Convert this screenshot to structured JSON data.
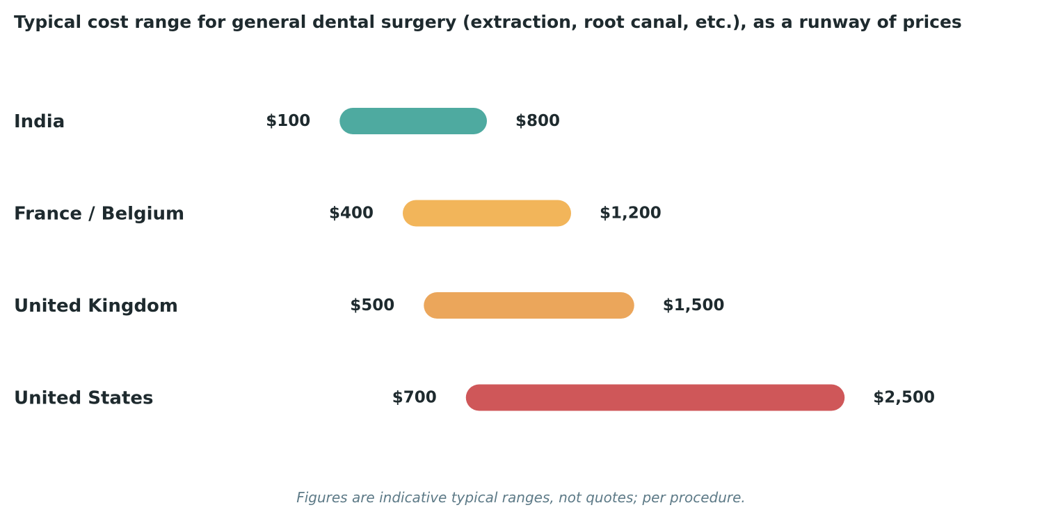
{
  "chart_data": {
    "type": "bar",
    "orientation": "horizontal",
    "style": "floating range (low to high)",
    "title": "Typical cost range for general dental surgery (extraction, root canal, etc.), as a runway of prices",
    "footnote": "Figures are indicative typical ranges, not quotes; per procedure.",
    "categories": [
      "India",
      "France / Belgium",
      "United Kingdom",
      "United States"
    ],
    "low": [
      100,
      400,
      500,
      700
    ],
    "high": [
      800,
      1200,
      1500,
      2500
    ],
    "low_labels": [
      "$100",
      "$400",
      "$500",
      "$700"
    ],
    "high_labels": [
      "$800",
      "$1,200",
      "$1,500",
      "$2,500"
    ],
    "colors": [
      "#4eaaa0",
      "#f2b55a",
      "#eba65b",
      "#cf5759"
    ],
    "legend": "none",
    "grid": false,
    "axes_visible": false
  }
}
